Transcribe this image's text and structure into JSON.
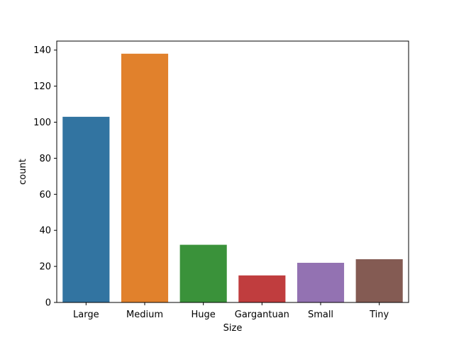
{
  "chart_data": {
    "type": "bar",
    "categories": [
      "Large",
      "Medium",
      "Huge",
      "Gargantuan",
      "Small",
      "Tiny"
    ],
    "values": [
      103,
      138,
      32,
      15,
      22,
      24
    ],
    "colors": [
      "#3274a1",
      "#e1812c",
      "#3a923a",
      "#c03d3e",
      "#9372b2",
      "#845b53"
    ],
    "xlabel": "Size",
    "ylabel": "count",
    "ylim": [
      0,
      145
    ],
    "yticks": [
      0,
      20,
      40,
      60,
      80,
      100,
      120,
      140
    ],
    "grid": false,
    "legend": false
  }
}
